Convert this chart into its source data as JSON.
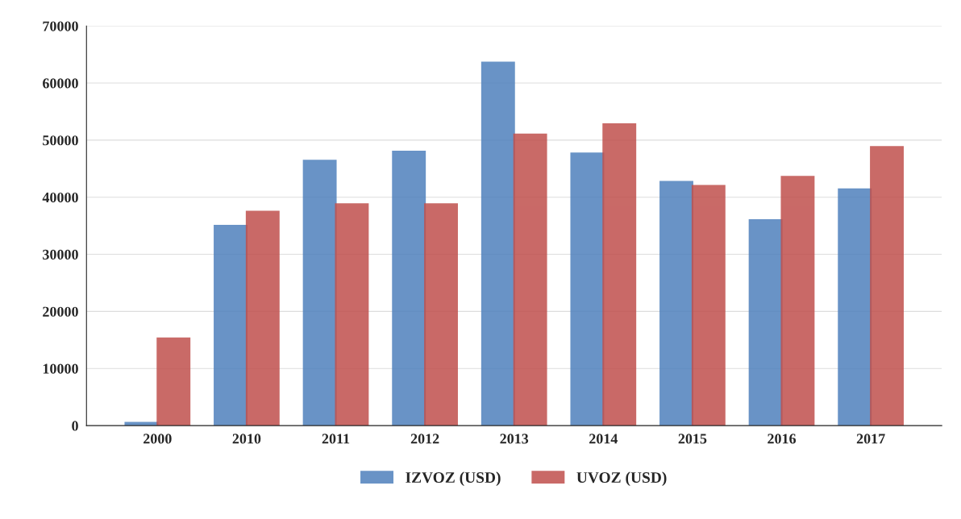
{
  "chart_data": {
    "type": "bar",
    "categories": [
      "2000",
      "2010",
      "2011",
      "2012",
      "2013",
      "2014",
      "2015",
      "2016",
      "2017"
    ],
    "series": [
      {
        "name": "IZVOZ (USD)",
        "color": "#4f81bd",
        "values": [
          500,
          35000,
          46400,
          48000,
          63600,
          47700,
          42700,
          36000,
          41400
        ]
      },
      {
        "name": "UVOZ (USD)",
        "color": "#c0504d",
        "values": [
          15300,
          37500,
          38800,
          38800,
          51000,
          52800,
          42000,
          43600,
          48800
        ]
      }
    ],
    "ylim": [
      0,
      70000
    ],
    "yticks": [
      0,
      10000,
      20000,
      30000,
      40000,
      50000,
      60000,
      70000
    ],
    "grid": "y",
    "legend": "bottom"
  }
}
